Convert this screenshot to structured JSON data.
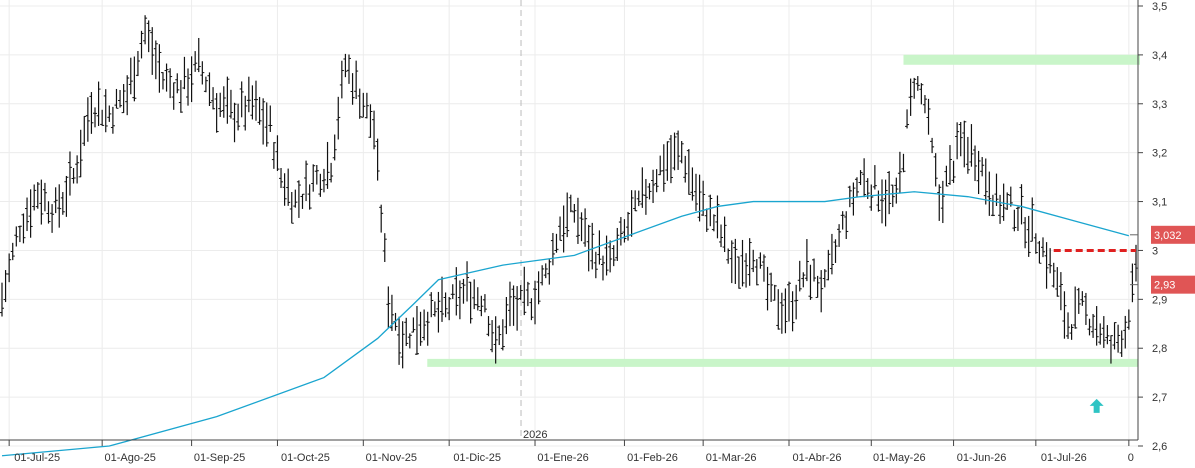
{
  "chart_data": {
    "type": "ohlc",
    "title": "",
    "xlabel": "",
    "ylabel": "",
    "ylim": [
      2.6,
      3.5
    ],
    "x_tick_labels": [
      "01-Jul-25",
      "01-Ago-25",
      "01-Sep-25",
      "01-Oct-25",
      "01-Nov-25",
      "01-Dic-25",
      "01-Ene-26",
      "01-Feb-26",
      "01-Mar-26",
      "01-Abr-26",
      "01-May-26",
      "01-Jun-26",
      "01-Jul-26",
      "0"
    ],
    "year_marker": "2026",
    "y_ticks": [
      2.6,
      2.7,
      2.8,
      2.9,
      3.0,
      3.1,
      3.2,
      3.3,
      3.4,
      3.5
    ],
    "y_tick_labels": [
      "2,6",
      "2,7",
      "2,8",
      "2,9",
      "3",
      "3,1",
      "3,2",
      "3,3",
      "3,4",
      "3,5"
    ],
    "moving_average": {
      "color": "#1aa5cf",
      "points": [
        [
          0,
          2.58
        ],
        [
          30,
          2.6
        ],
        [
          60,
          2.66
        ],
        [
          90,
          2.74
        ],
        [
          105,
          2.82
        ],
        [
          115,
          2.89
        ],
        [
          122,
          2.94
        ],
        [
          140,
          2.97
        ],
        [
          160,
          2.99
        ],
        [
          175,
          3.03
        ],
        [
          190,
          3.07
        ],
        [
          200,
          3.09
        ],
        [
          210,
          3.1
        ],
        [
          230,
          3.1
        ],
        [
          240,
          3.11
        ],
        [
          255,
          3.12
        ],
        [
          270,
          3.11
        ],
        [
          285,
          3.09
        ],
        [
          300,
          3.06
        ],
        [
          315,
          3.03
        ]
      ]
    },
    "support_zone": {
      "x_start": 120,
      "x_end": 317,
      "value": 2.77,
      "color": "#c9f5c9"
    },
    "resistance_zone": {
      "x_start": 252,
      "x_end": 317,
      "value": 3.39,
      "color": "#c9f5c9"
    },
    "breakout_level": {
      "x_start": 294,
      "x_end": 317,
      "value": 3.0,
      "color": "#e02020"
    },
    "price_badges": [
      {
        "label": "3,032",
        "value": 3.032,
        "color": "#e05555"
      },
      {
        "label": "2,93",
        "value": 2.93,
        "color": "#e05555"
      }
    ],
    "signal_arrow": {
      "x": 306,
      "value": 2.68,
      "color": "#2ec4c4"
    },
    "ohlc_anchors": [
      [
        0,
        2.9
      ],
      [
        5,
        3.05
      ],
      [
        10,
        3.12
      ],
      [
        15,
        3.08
      ],
      [
        20,
        3.15
      ],
      [
        25,
        3.3
      ],
      [
        30,
        3.28
      ],
      [
        35,
        3.32
      ],
      [
        40,
        3.45
      ],
      [
        45,
        3.35
      ],
      [
        50,
        3.33
      ],
      [
        55,
        3.38
      ],
      [
        60,
        3.3
      ],
      [
        65,
        3.28
      ],
      [
        70,
        3.3
      ],
      [
        75,
        3.25
      ],
      [
        78,
        3.15
      ],
      [
        82,
        3.1
      ],
      [
        88,
        3.15
      ],
      [
        92,
        3.18
      ],
      [
        96,
        3.38
      ],
      [
        100,
        3.32
      ],
      [
        104,
        3.25
      ],
      [
        108,
        2.9
      ],
      [
        112,
        2.82
      ],
      [
        118,
        2.86
      ],
      [
        124,
        2.88
      ],
      [
        130,
        2.92
      ],
      [
        135,
        2.9
      ],
      [
        138,
        2.8
      ],
      [
        142,
        2.88
      ],
      [
        148,
        2.9
      ],
      [
        152,
        2.95
      ],
      [
        156,
        3.05
      ],
      [
        160,
        3.08
      ],
      [
        165,
        3.0
      ],
      [
        170,
        2.97
      ],
      [
        175,
        3.05
      ],
      [
        180,
        3.12
      ],
      [
        185,
        3.18
      ],
      [
        190,
        3.2
      ],
      [
        195,
        3.1
      ],
      [
        200,
        3.05
      ],
      [
        205,
        2.96
      ],
      [
        210,
        3.0
      ],
      [
        215,
        2.9
      ],
      [
        220,
        2.88
      ],
      [
        225,
        2.96
      ],
      [
        230,
        2.92
      ],
      [
        235,
        3.05
      ],
      [
        240,
        3.15
      ],
      [
        245,
        3.12
      ],
      [
        250,
        3.1
      ],
      [
        255,
        3.35
      ],
      [
        258,
        3.3
      ],
      [
        262,
        3.1
      ],
      [
        268,
        3.22
      ],
      [
        272,
        3.2
      ],
      [
        278,
        3.1
      ],
      [
        284,
        3.08
      ],
      [
        290,
        3.02
      ],
      [
        294,
        2.95
      ],
      [
        298,
        2.85
      ],
      [
        302,
        2.88
      ],
      [
        306,
        2.85
      ],
      [
        310,
        2.8
      ],
      [
        314,
        2.84
      ],
      [
        317,
        2.95
      ]
    ]
  }
}
